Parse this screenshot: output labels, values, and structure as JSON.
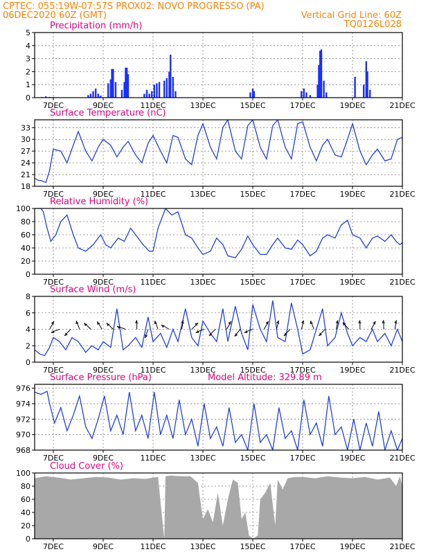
{
  "header": {
    "line1_left": "CPTEC:   055:19W-07:57S   PROX02: NOVO PROGRESSO (PA)",
    "line2_left": "06DEC2020 60Z (GMT)",
    "line2_right": "Vertical Grid Line: 60Z",
    "line3_right": "TQ0126L028"
  },
  "colors": {
    "header_text": "#ff8000",
    "panel_title": "#e0007f",
    "series_line": "#2040e0",
    "precip_bar": "#1a30ff",
    "cloud_fill": "#a8a8a8",
    "wind_arrow": "#000000",
    "axis": "#000000",
    "grid": "#808080"
  },
  "x_tick_labels": [
    "7DEC",
    "9DEC",
    "11DEC",
    "13DEC",
    "15DEC",
    "17DEC",
    "19DEC",
    "21DEC"
  ],
  "chart_data": [
    {
      "id": "precip",
      "type": "bar",
      "title": "Precipitation  (mm/h)",
      "xlabel": "",
      "ylabel": "",
      "ylim": [
        0,
        5
      ],
      "yticks": [
        0,
        1,
        2,
        3,
        4,
        5
      ],
      "xlim": [
        6.25,
        21.0
      ],
      "bars": [
        {
          "x": 6.55,
          "y": 0.05
        },
        {
          "x": 6.7,
          "y": 0.1
        },
        {
          "x": 6.85,
          "y": 0.05
        },
        {
          "x": 7.0,
          "y": 0.05
        },
        {
          "x": 8.4,
          "y": 0.2
        },
        {
          "x": 8.5,
          "y": 0.3
        },
        {
          "x": 8.6,
          "y": 0.5
        },
        {
          "x": 8.7,
          "y": 0.7
        },
        {
          "x": 8.8,
          "y": 0.3
        },
        {
          "x": 8.9,
          "y": 0.15
        },
        {
          "x": 9.2,
          "y": 1.1
        },
        {
          "x": 9.3,
          "y": 1.4
        },
        {
          "x": 9.35,
          "y": 2.2
        },
        {
          "x": 9.4,
          "y": 2.2
        },
        {
          "x": 9.5,
          "y": 1.2
        },
        {
          "x": 9.75,
          "y": 0.6
        },
        {
          "x": 9.85,
          "y": 1.2
        },
        {
          "x": 9.9,
          "y": 2.3
        },
        {
          "x": 9.95,
          "y": 2.3
        },
        {
          "x": 10.0,
          "y": 1.8
        },
        {
          "x": 10.65,
          "y": 0.3
        },
        {
          "x": 10.75,
          "y": 0.6
        },
        {
          "x": 10.85,
          "y": 0.3
        },
        {
          "x": 10.95,
          "y": 0.5
        },
        {
          "x": 11.05,
          "y": 1.0
        },
        {
          "x": 11.15,
          "y": 1.1
        },
        {
          "x": 11.25,
          "y": 1.2
        },
        {
          "x": 11.45,
          "y": 1.3
        },
        {
          "x": 11.55,
          "y": 1.5
        },
        {
          "x": 11.65,
          "y": 2.0
        },
        {
          "x": 11.7,
          "y": 3.3
        },
        {
          "x": 11.8,
          "y": 1.6
        },
        {
          "x": 11.9,
          "y": 0.5
        },
        {
          "x": 14.9,
          "y": 0.4
        },
        {
          "x": 15.0,
          "y": 0.7
        },
        {
          "x": 15.05,
          "y": 0.5
        },
        {
          "x": 16.95,
          "y": 0.5
        },
        {
          "x": 17.05,
          "y": 0.7
        },
        {
          "x": 17.15,
          "y": 0.4
        },
        {
          "x": 17.3,
          "y": 0.2
        },
        {
          "x": 17.6,
          "y": 1.0
        },
        {
          "x": 17.65,
          "y": 2.5
        },
        {
          "x": 17.7,
          "y": 3.6
        },
        {
          "x": 17.75,
          "y": 3.7
        },
        {
          "x": 17.85,
          "y": 1.3
        },
        {
          "x": 17.95,
          "y": 0.4
        },
        {
          "x": 19.1,
          "y": 1.6
        },
        {
          "x": 19.45,
          "y": 1.0
        },
        {
          "x": 19.55,
          "y": 2.8
        },
        {
          "x": 19.6,
          "y": 2.0
        },
        {
          "x": 19.7,
          "y": 0.6
        }
      ]
    },
    {
      "id": "temperature",
      "type": "line",
      "title": "Surface Temperature (nC)",
      "xlabel": "",
      "ylabel": "",
      "ylim": [
        18,
        35
      ],
      "yticks": [
        18,
        21,
        24,
        27,
        30,
        33
      ],
      "xlim": [
        6.25,
        21.0
      ],
      "x": [
        6.25,
        6.4,
        6.5,
        6.6,
        6.7,
        6.85,
        7.0,
        7.3,
        7.55,
        7.8,
        8.0,
        8.3,
        8.55,
        8.8,
        9.0,
        9.3,
        9.55,
        9.8,
        10.0,
        10.3,
        10.55,
        10.8,
        11.0,
        11.3,
        11.55,
        11.8,
        12.0,
        12.3,
        12.55,
        12.8,
        13.0,
        13.3,
        13.55,
        13.8,
        14.0,
        14.3,
        14.55,
        14.8,
        15.0,
        15.3,
        15.55,
        15.8,
        16.0,
        16.3,
        16.55,
        16.8,
        17.0,
        17.3,
        17.55,
        17.8,
        18.0,
        18.3,
        18.55,
        18.8,
        19.0,
        19.3,
        19.55,
        19.8,
        20.0,
        20.3,
        20.55,
        20.8,
        21.0
      ],
      "y": [
        20.0,
        19.5,
        19.5,
        19.2,
        19.0,
        22.0,
        27.5,
        27.0,
        24.0,
        28.5,
        32.0,
        27.0,
        24.5,
        28.0,
        30.0,
        28.5,
        25.5,
        28.0,
        29.5,
        26.0,
        24.0,
        29.0,
        31.0,
        27.0,
        24.0,
        31.0,
        30.5,
        25.0,
        23.5,
        31.0,
        34.0,
        28.0,
        25.0,
        33.0,
        35.0,
        27.0,
        25.0,
        33.5,
        35.0,
        28.0,
        25.0,
        33.5,
        35.0,
        28.0,
        25.0,
        34.0,
        34.5,
        28.0,
        24.5,
        28.5,
        30.0,
        26.0,
        25.5,
        30.0,
        34.0,
        27.0,
        23.5,
        26.0,
        27.5,
        24.5,
        25.0,
        30.0,
        30.5
      ]
    },
    {
      "id": "humidity",
      "type": "line",
      "title": "Relative Humidity (%)",
      "xlabel": "",
      "ylabel": "",
      "ylim": [
        0,
        100
      ],
      "yticks": [
        0,
        20,
        40,
        60,
        80,
        100
      ],
      "xlim": [
        6.25,
        21.0
      ],
      "x": [
        6.25,
        6.5,
        6.6,
        6.75,
        6.9,
        7.1,
        7.3,
        7.55,
        7.8,
        8.0,
        8.3,
        8.6,
        8.9,
        9.1,
        9.3,
        9.6,
        9.85,
        10.1,
        10.3,
        10.6,
        10.85,
        11.0,
        11.2,
        11.5,
        11.75,
        12.0,
        12.3,
        12.55,
        12.8,
        13.0,
        13.3,
        13.55,
        13.8,
        14.0,
        14.3,
        14.55,
        14.8,
        15.0,
        15.3,
        15.55,
        15.8,
        16.0,
        16.3,
        16.55,
        16.8,
        17.0,
        17.3,
        17.55,
        17.8,
        18.0,
        18.3,
        18.55,
        18.8,
        19.0,
        19.3,
        19.55,
        19.8,
        20.0,
        20.3,
        20.55,
        20.75,
        20.9,
        21.0
      ],
      "y": [
        100,
        100,
        95,
        70,
        50,
        60,
        80,
        90,
        60,
        40,
        35,
        45,
        60,
        45,
        40,
        55,
        50,
        70,
        60,
        45,
        35,
        35,
        70,
        100,
        90,
        95,
        60,
        55,
        40,
        30,
        35,
        55,
        45,
        28,
        25,
        38,
        58,
        45,
        30,
        30,
        45,
        55,
        40,
        38,
        52,
        45,
        28,
        35,
        55,
        60,
        55,
        75,
        82,
        60,
        55,
        40,
        55,
        58,
        50,
        60,
        50,
        45,
        48
      ]
    },
    {
      "id": "wind",
      "type": "line",
      "title": "Surface Wind (m/s)",
      "xlabel": "",
      "ylabel": "",
      "ylim": [
        0,
        8
      ],
      "yticks": [
        0,
        2,
        4,
        6,
        8
      ],
      "xlim": [
        6.25,
        21.0
      ],
      "x": [
        6.25,
        6.45,
        6.65,
        6.85,
        7.0,
        7.25,
        7.5,
        7.75,
        8.0,
        8.3,
        8.55,
        8.8,
        9.0,
        9.3,
        9.55,
        9.8,
        10.0,
        10.3,
        10.55,
        10.8,
        11.0,
        11.3,
        11.55,
        11.8,
        12.0,
        12.3,
        12.55,
        12.8,
        13.0,
        13.3,
        13.55,
        13.8,
        14.0,
        14.3,
        14.55,
        14.8,
        15.0,
        15.3,
        15.55,
        15.8,
        16.0,
        16.3,
        16.55,
        16.8,
        17.0,
        17.3,
        17.55,
        17.8,
        18.0,
        18.3,
        18.55,
        18.8,
        19.0,
        19.3,
        19.55,
        19.8,
        20.0,
        20.3,
        20.55,
        20.8,
        21.0
      ],
      "y": [
        1.5,
        1.0,
        0.8,
        1.8,
        3.0,
        2.5,
        1.5,
        3.0,
        2.5,
        1.2,
        2.0,
        1.5,
        2.5,
        1.8,
        6.5,
        1.5,
        2.0,
        3.0,
        1.8,
        5.5,
        2.5,
        3.5,
        1.8,
        4.0,
        2.5,
        6.5,
        3.0,
        2.0,
        5.0,
        3.5,
        2.5,
        6.5,
        2.5,
        6.8,
        3.5,
        1.5,
        7.0,
        4.0,
        2.5,
        7.5,
        3.0,
        2.5,
        7.2,
        4.0,
        1.0,
        1.5,
        4.0,
        6.5,
        2.0,
        3.0,
        6.0,
        3.5,
        2.0,
        3.0,
        2.5,
        4.0,
        2.5,
        3.5,
        2.0,
        4.0,
        2.5
      ],
      "vectors": [
        {
          "x": 6.85,
          "dir_deg": 60
        },
        {
          "x": 7.25,
          "dir_deg": 200
        },
        {
          "x": 7.7,
          "dir_deg": 225
        },
        {
          "x": 8.05,
          "dir_deg": 110
        },
        {
          "x": 8.5,
          "dir_deg": 135
        },
        {
          "x": 8.95,
          "dir_deg": 120
        },
        {
          "x": 9.4,
          "dir_deg": 135
        },
        {
          "x": 9.9,
          "dir_deg": 160
        },
        {
          "x": 10.35,
          "dir_deg": 90
        },
        {
          "x": 10.8,
          "dir_deg": 250
        },
        {
          "x": 11.2,
          "dir_deg": 110
        },
        {
          "x": 11.65,
          "dir_deg": 150
        },
        {
          "x": 12.15,
          "dir_deg": 80
        },
        {
          "x": 12.55,
          "dir_deg": 45
        },
        {
          "x": 13.05,
          "dir_deg": 200
        },
        {
          "x": 13.5,
          "dir_deg": 225
        },
        {
          "x": 13.95,
          "dir_deg": 60
        },
        {
          "x": 14.5,
          "dir_deg": 230
        },
        {
          "x": 15.0,
          "dir_deg": 200
        },
        {
          "x": 15.45,
          "dir_deg": 60
        },
        {
          "x": 15.95,
          "dir_deg": 75
        },
        {
          "x": 16.5,
          "dir_deg": 225
        },
        {
          "x": 16.95,
          "dir_deg": 75
        },
        {
          "x": 17.45,
          "dir_deg": 110
        },
        {
          "x": 17.9,
          "dir_deg": 225
        },
        {
          "x": 18.35,
          "dir_deg": 80
        },
        {
          "x": 18.85,
          "dir_deg": 130
        },
        {
          "x": 19.3,
          "dir_deg": 90
        },
        {
          "x": 19.75,
          "dir_deg": 60
        },
        {
          "x": 20.25,
          "dir_deg": 90
        },
        {
          "x": 20.7,
          "dir_deg": 80
        }
      ]
    },
    {
      "id": "pressure",
      "type": "line",
      "title": "Surface Pressure (hPa)",
      "annotation": "Model Altitude: 329.89  m",
      "xlabel": "",
      "ylabel": "",
      "ylim": [
        968,
        976.5
      ],
      "yticks": [
        968,
        970,
        972,
        974,
        976
      ],
      "xlim": [
        6.25,
        21.0
      ],
      "x": [
        6.25,
        6.5,
        6.75,
        6.85,
        7.05,
        7.3,
        7.55,
        7.8,
        8.05,
        8.3,
        8.55,
        8.8,
        9.05,
        9.3,
        9.55,
        9.8,
        10.05,
        10.3,
        10.55,
        10.8,
        11.05,
        11.3,
        11.55,
        11.8,
        12.05,
        12.3,
        12.55,
        12.8,
        13.05,
        13.3,
        13.55,
        13.8,
        14.05,
        14.3,
        14.55,
        14.8,
        15.05,
        15.3,
        15.55,
        15.8,
        16.05,
        16.3,
        16.55,
        16.8,
        17.05,
        17.3,
        17.55,
        17.8,
        18.05,
        18.3,
        18.55,
        18.8,
        19.05,
        19.3,
        19.55,
        19.8,
        20.05,
        20.3,
        20.55,
        20.8,
        21.0
      ],
      "y": [
        975.5,
        975.2,
        975.6,
        974.0,
        971.5,
        973.5,
        970.5,
        972.5,
        975.0,
        971.0,
        969.5,
        972.0,
        975.0,
        970.5,
        972.5,
        970.0,
        975.5,
        970.5,
        972.5,
        969.5,
        975.5,
        970.0,
        972.5,
        969.5,
        974.5,
        970.0,
        972.0,
        968.5,
        974.0,
        969.5,
        971.0,
        968.5,
        973.5,
        969.0,
        970.0,
        968.0,
        974.0,
        969.0,
        970.0,
        968.0,
        973.5,
        969.5,
        970.5,
        968.0,
        974.5,
        970.0,
        971.5,
        968.5,
        975.0,
        970.0,
        971.0,
        968.0,
        972.0,
        968.0,
        971.5,
        968.5,
        973.0,
        968.0,
        970.5,
        968.0,
        969.5
      ]
    },
    {
      "id": "cloud",
      "type": "area",
      "title": "Cloud Cover (%)",
      "xlabel": "",
      "ylabel": "",
      "ylim": [
        0,
        100
      ],
      "yticks": [
        0,
        20,
        40,
        60,
        80,
        100
      ],
      "xlim": [
        6.25,
        21.0
      ],
      "x": [
        6.25,
        6.7,
        7.2,
        7.7,
        8.2,
        8.7,
        9.2,
        9.7,
        10.2,
        10.7,
        11.2,
        11.45,
        11.5,
        11.7,
        12.2,
        12.5,
        12.8,
        13.0,
        13.2,
        13.4,
        13.6,
        13.8,
        14.0,
        14.2,
        14.4,
        14.55,
        14.7,
        14.85,
        15.0,
        15.2,
        15.3,
        15.5,
        15.7,
        15.9,
        16.0,
        16.2,
        16.4,
        16.7,
        17.0,
        17.5,
        18.0,
        18.5,
        19.0,
        19.5,
        20.0,
        20.5,
        20.75,
        20.9,
        21.0
      ],
      "y": [
        92,
        95,
        93,
        90,
        92,
        94,
        93,
        90,
        92,
        91,
        94,
        0,
        95,
        96,
        95,
        95,
        85,
        30,
        45,
        25,
        70,
        20,
        60,
        90,
        85,
        30,
        40,
        5,
        0,
        5,
        60,
        70,
        85,
        20,
        90,
        75,
        92,
        94,
        94,
        92,
        95,
        93,
        92,
        94,
        90,
        93,
        80,
        95,
        80
      ]
    }
  ]
}
